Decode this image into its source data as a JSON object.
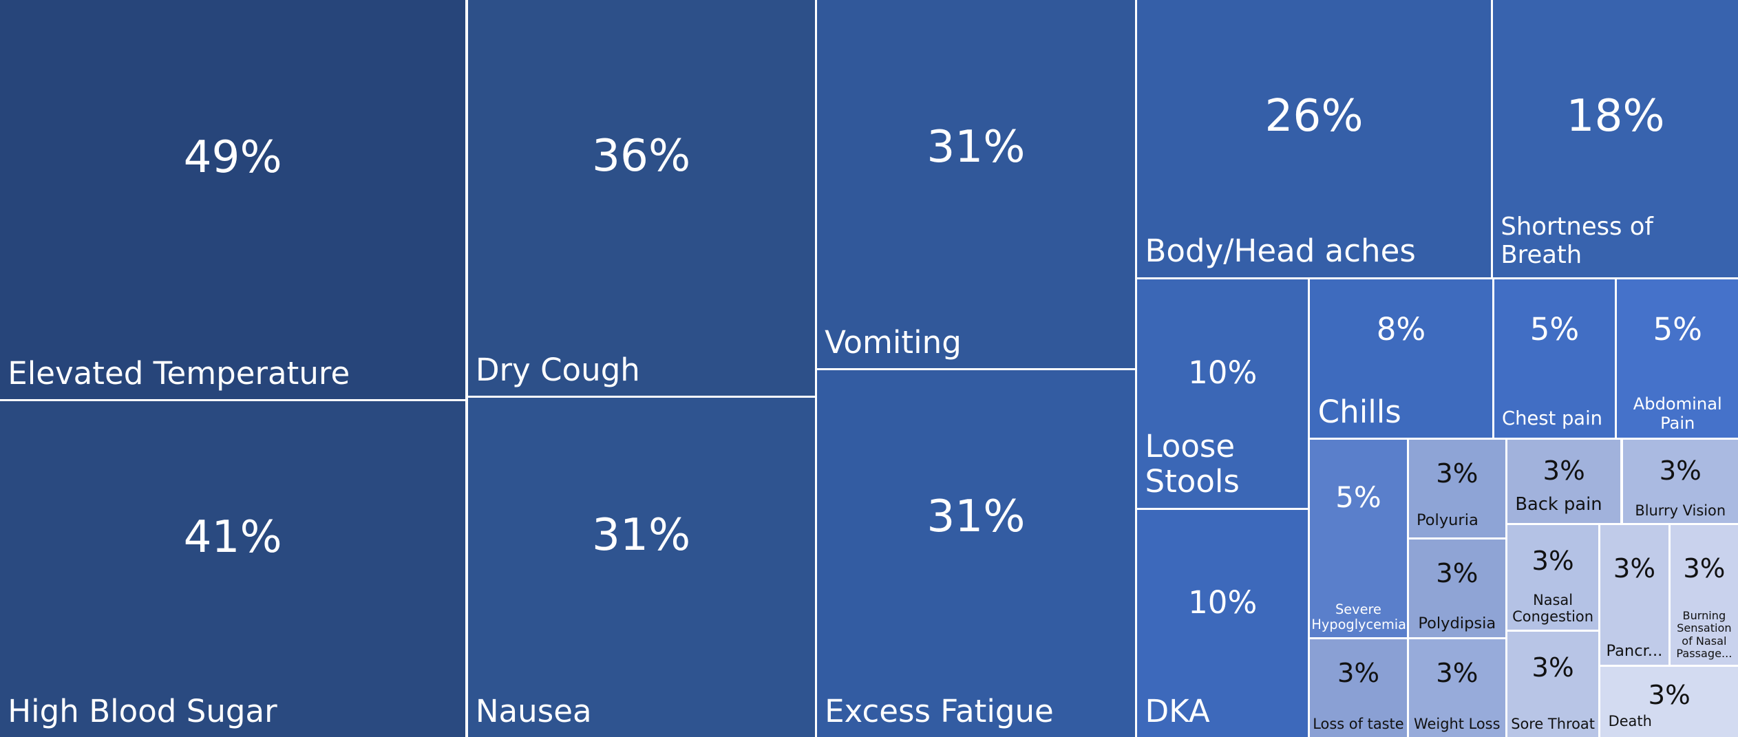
{
  "chart_data": {
    "type": "treemap",
    "categories": [
      "Elevated Temperature",
      "High Blood Sugar",
      "Dry Cough",
      "Nausea",
      "Vomiting",
      "Excess Fatigue",
      "Body/Head aches",
      "Shortness of Breath",
      "Loose Stools",
      "DKA",
      "Chills",
      "Chest pain",
      "Abdominal Pain",
      "Severe Hypoglycemia",
      "Polyuria",
      "Back pain",
      "Blurry Vision",
      "Polydipsia",
      "Nasal Congestion",
      "Pancr...",
      "Burning Sensation of Nasal Passage...",
      "Loss of taste",
      "Weight Loss",
      "Sore Throat",
      "Death"
    ],
    "values": [
      49,
      41,
      36,
      31,
      31,
      31,
      26,
      18,
      10,
      10,
      8,
      5,
      5,
      5,
      3,
      3,
      3,
      3,
      3,
      3,
      3,
      3,
      3,
      3,
      3
    ],
    "value_labels": [
      "49%",
      "41%",
      "36%",
      "31%",
      "31%",
      "31%",
      "26%",
      "18%",
      "10%",
      "10%",
      "8%",
      "5%",
      "5%",
      "5%",
      "3%",
      "3%",
      "3%",
      "3%",
      "3%",
      "3%",
      "3%",
      "3%",
      "3%",
      "3%",
      "3%"
    ],
    "colors": [
      "#27457a",
      "#2a4a80",
      "#2d5089",
      "#2f5490",
      "#31589a",
      "#335ca2",
      "#355fa8",
      "#3863ae",
      "#3b67b6",
      "#3d69bb",
      "#3e6bbe",
      "#416ec4",
      "#4572ca",
      "#5a7fcb",
      "#8ea4d6",
      "#a1b2dc",
      "#aabae1",
      "#8fa4d5",
      "#b4c2e5",
      "#c0cbe9",
      "#c9d2ed",
      "#8aa0d4",
      "#97abda",
      "#b8c5e6",
      "#d3dbf1"
    ]
  }
}
